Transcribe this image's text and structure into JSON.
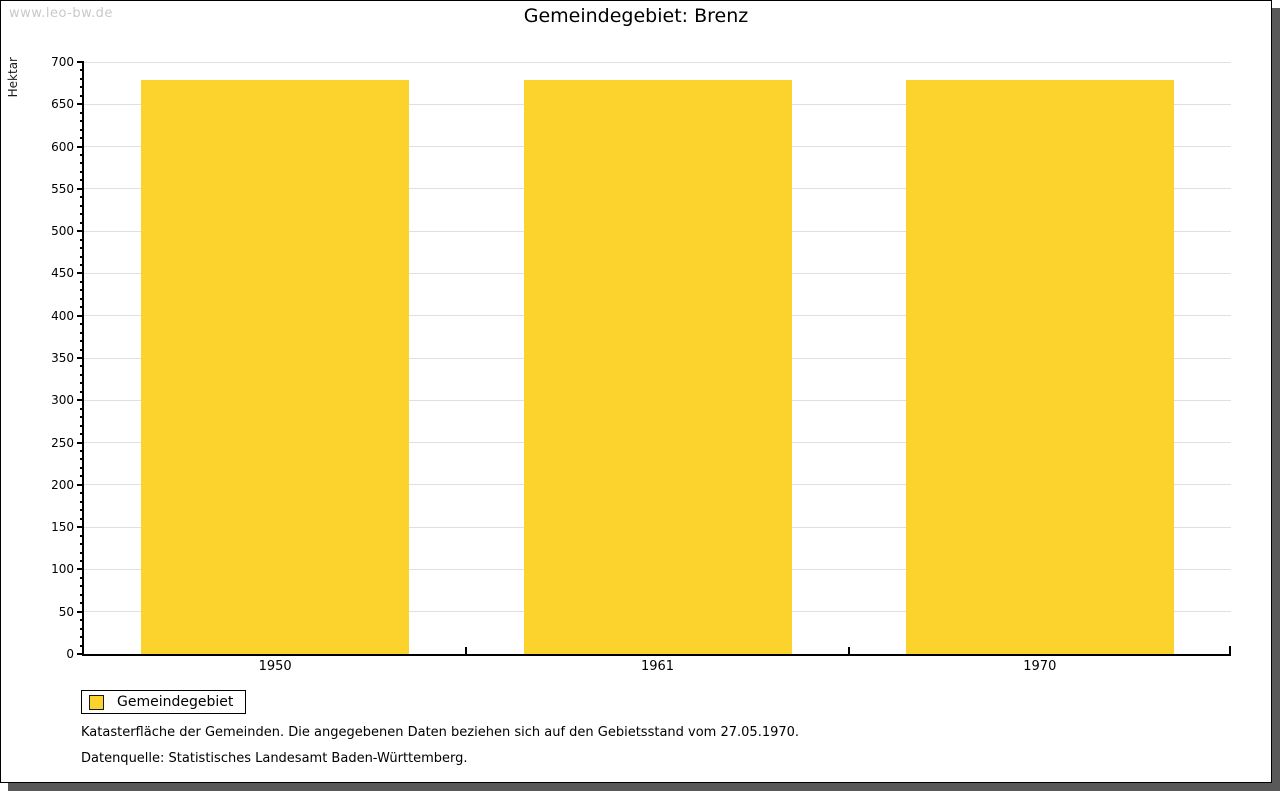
{
  "watermark": "www.leo-bw.de",
  "title": "Gemeindegebiet: Brenz",
  "chart_data": {
    "type": "bar",
    "title": "Gemeindegebiet: Brenz",
    "categories": [
      "1950",
      "1961",
      "1970"
    ],
    "series": [
      {
        "name": "Gemeindegebiet",
        "values": [
          679,
          679,
          679
        ]
      }
    ],
    "xlabel": "",
    "ylabel": "Hektar",
    "ylim": [
      0,
      700
    ],
    "ytick_major": 50,
    "ytick_minor": 10,
    "grid": true,
    "legend_position": "bottom-left"
  },
  "legend": {
    "items": [
      {
        "label": "Gemeindegebiet",
        "color": "#fcd32d"
      }
    ]
  },
  "footer": {
    "line1": "Katasterfläche der Gemeinden. Die angegebenen Daten beziehen sich auf den Gebietsstand vom 27.05.1970.",
    "line2": "Datenquelle: Statistisches Landesamt Baden-Württemberg."
  },
  "colors": {
    "bar": "#fcd32d",
    "grid": "#e0e0e0",
    "axis": "#000000",
    "watermark": "#c9c9c9",
    "frame_shadow": "#595959"
  }
}
